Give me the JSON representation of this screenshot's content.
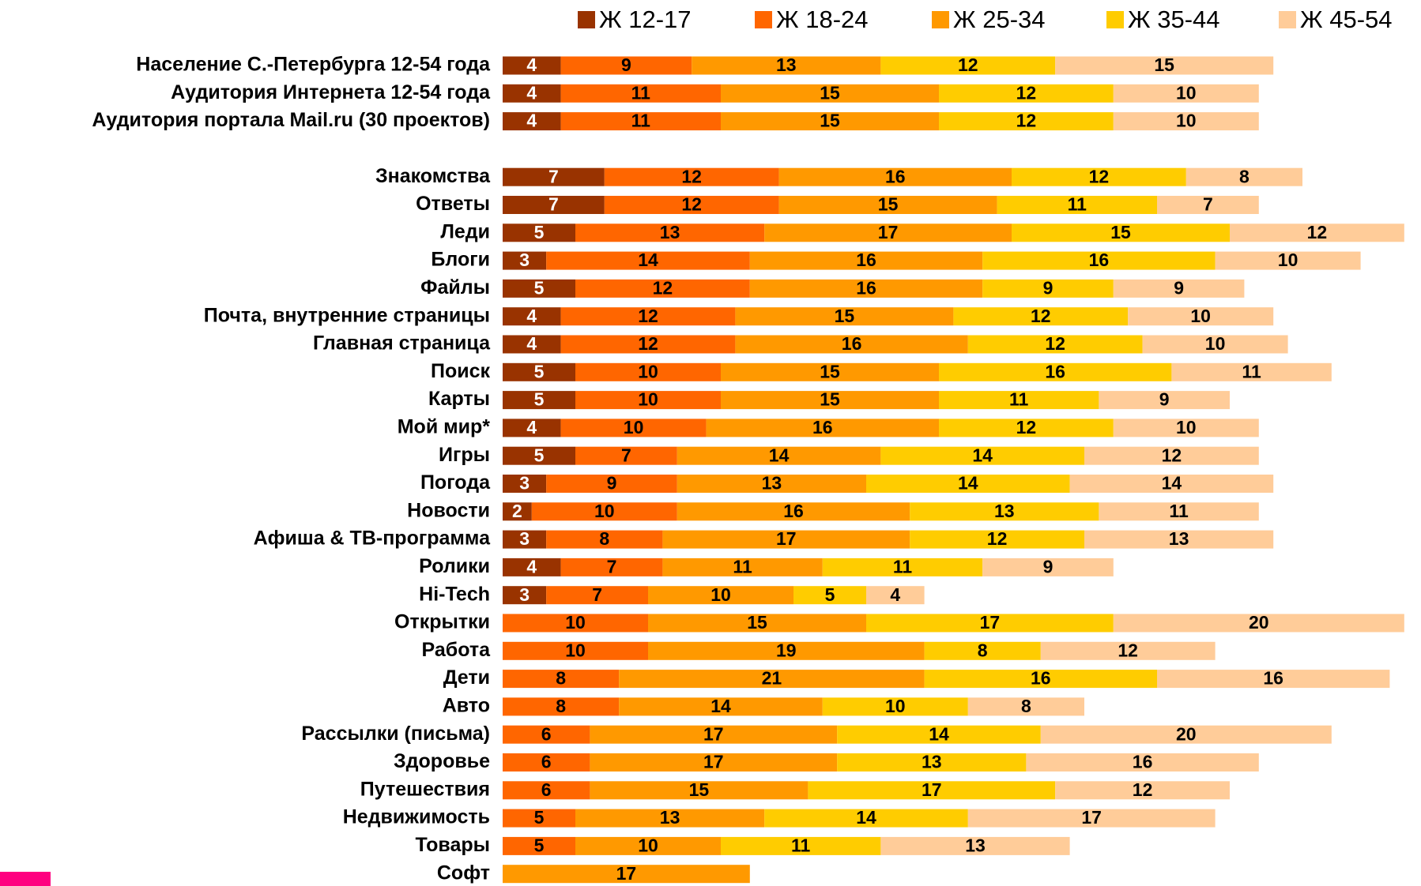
{
  "chart_data": {
    "type": "stacked-barh",
    "categories": [
      "Население С.-Петербурга 12-54 года",
      "Аудитория Интернета 12-54 года",
      "Аудитория портала Mail.ru (30 проектов)",
      null,
      "Знакомства",
      "Ответы",
      "Леди",
      "Блоги",
      "Файлы",
      "Почта, внутренние страницы",
      "Главная страница",
      "Поиск",
      "Карты",
      "Мой мир*",
      "Игры",
      "Погода",
      "Новости",
      "Афиша & ТВ-программа",
      "Ролики",
      "Hi-Tech",
      "Открытки",
      "Работа",
      "Дети",
      "Авто",
      "Рассылки (письма)",
      "Здоровье",
      "Путешествия",
      "Недвижимость",
      "Товары",
      "Софт"
    ],
    "series": [
      {
        "name": "Ж 12-17",
        "color": "#993300",
        "values": [
          4,
          4,
          4,
          null,
          7,
          7,
          5,
          3,
          5,
          4,
          4,
          5,
          5,
          4,
          5,
          3,
          2,
          3,
          4,
          3,
          null,
          null,
          null,
          null,
          null,
          null,
          null,
          null,
          null,
          null
        ]
      },
      {
        "name": "Ж 18-24",
        "color": "#ff6600",
        "values": [
          9,
          11,
          11,
          null,
          12,
          12,
          13,
          14,
          12,
          12,
          12,
          10,
          10,
          10,
          7,
          9,
          10,
          8,
          7,
          7,
          10,
          10,
          8,
          8,
          6,
          6,
          6,
          5,
          5,
          null
        ]
      },
      {
        "name": "Ж 25-34",
        "color": "#ff9900",
        "values": [
          13,
          15,
          15,
          null,
          16,
          15,
          17,
          16,
          16,
          15,
          16,
          15,
          15,
          16,
          14,
          13,
          16,
          17,
          11,
          10,
          15,
          19,
          21,
          14,
          17,
          17,
          15,
          13,
          10,
          17
        ]
      },
      {
        "name": "Ж 35-44",
        "color": "#ffcc00",
        "values": [
          12,
          12,
          12,
          null,
          12,
          11,
          15,
          16,
          9,
          12,
          12,
          16,
          11,
          12,
          14,
          14,
          13,
          12,
          11,
          5,
          17,
          8,
          16,
          10,
          14,
          13,
          17,
          14,
          11,
          null
        ]
      },
      {
        "name": "Ж 45-54",
        "color": "#ffcc99",
        "values": [
          15,
          10,
          10,
          null,
          8,
          7,
          12,
          10,
          9,
          10,
          10,
          11,
          9,
          10,
          12,
          14,
          11,
          13,
          9,
          4,
          20,
          12,
          16,
          8,
          20,
          16,
          12,
          17,
          13,
          null
        ]
      }
    ],
    "legend": "top"
  }
}
